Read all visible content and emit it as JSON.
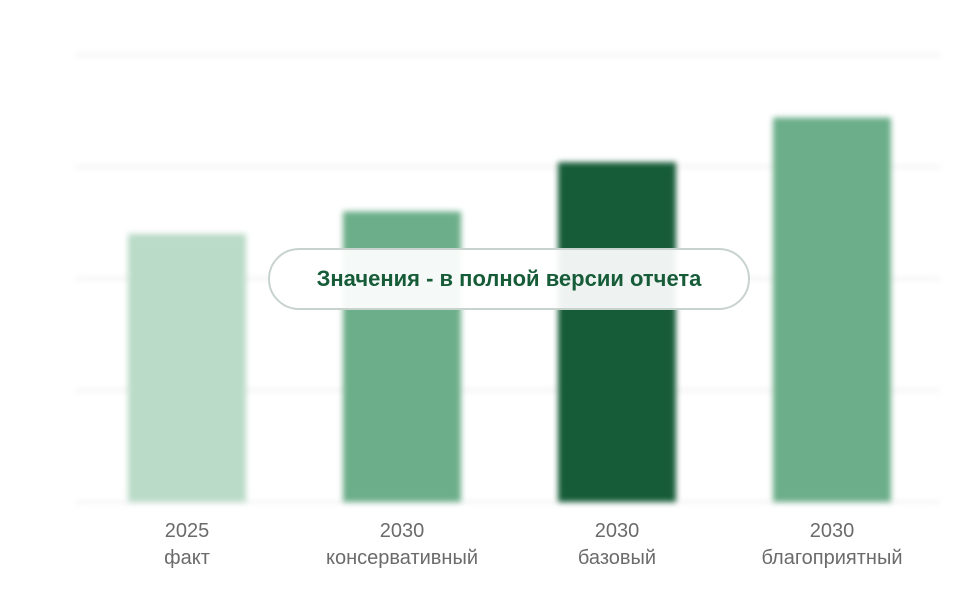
{
  "overlay": {
    "message": "Значения - в полной версии отчета"
  },
  "chart_data": {
    "type": "bar",
    "categories": [
      {
        "year": "2025",
        "label": "факт"
      },
      {
        "year": "2030",
        "label": "консервативный"
      },
      {
        "year": "2030",
        "label": "базовый"
      },
      {
        "year": "2030",
        "label": "благоприятный"
      }
    ],
    "values": [
      60,
      65,
      76,
      86
    ],
    "ylim": [
      0,
      100
    ],
    "grid": true,
    "legend": "none",
    "values_hidden": true,
    "colors": [
      "#badbc8",
      "#6cae8a",
      "#165c38",
      "#6cae8a"
    ],
    "grid_color": "#ececec",
    "label_color": "#6b6b6b"
  }
}
